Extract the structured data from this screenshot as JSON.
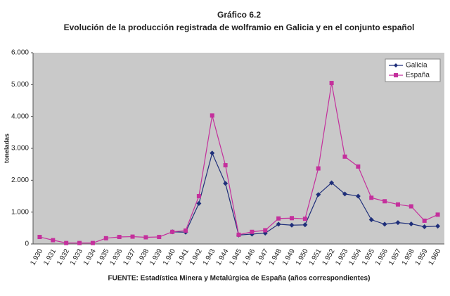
{
  "chart_data": {
    "type": "line",
    "title": "Gráfico 6.2",
    "subtitle": "Evolución de la producción registrada de wolframio en Galicia y en el conjunto español",
    "y_label": "toneladas",
    "source": "FUENTE: Estadística Minera y Metalúrgica de España (años correspondientes)",
    "categories": [
      "1.930",
      "1.931",
      "1.932",
      "1.933",
      "1.934",
      "1.935",
      "1.936",
      "1.937",
      "1.938",
      "1.939",
      "1.940",
      "1.941",
      "1.942",
      "1.943",
      "1.944",
      "1.945",
      "1.946",
      "1.947",
      "1.948",
      "1.949",
      "1.950",
      "1.951",
      "1.952",
      "1.953",
      "1.954",
      "1.955",
      "1.956",
      "1.957",
      "1.958",
      "1.959",
      "1.960"
    ],
    "series": [
      {
        "name": "Galicia",
        "color": "#1f2f7a",
        "marker": "diamond",
        "values": [
          null,
          null,
          null,
          null,
          null,
          null,
          null,
          null,
          null,
          null,
          380,
          370,
          1270,
          2850,
          1900,
          280,
          310,
          340,
          620,
          590,
          600,
          1550,
          1920,
          1570,
          1500,
          760,
          620,
          670,
          630,
          540,
          560
        ]
      },
      {
        "name": "España",
        "color": "#c4309c",
        "marker": "square",
        "values": [
          220,
          120,
          30,
          30,
          30,
          180,
          220,
          230,
          210,
          220,
          380,
          420,
          1500,
          4030,
          2470,
          290,
          380,
          430,
          800,
          810,
          790,
          2370,
          5050,
          2740,
          2430,
          1450,
          1340,
          1240,
          1180,
          730,
          920
        ]
      }
    ],
    "ylim": [
      0,
      6000
    ],
    "yticks": [
      0,
      {
        "value": 1000,
        "label": "1.000"
      },
      {
        "value": 2000,
        "label": "2.000"
      },
      {
        "value": 3000,
        "label": "3.000"
      },
      {
        "value": 4000,
        "label": "4.000"
      },
      {
        "value": 5000,
        "label": "5.000"
      },
      {
        "value": 6000,
        "label": "6.000"
      }
    ],
    "legend": "upper right"
  }
}
